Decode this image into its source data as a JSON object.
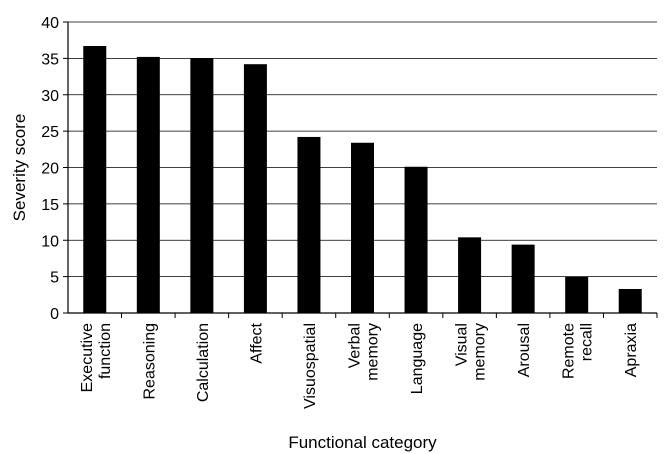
{
  "chart_data": {
    "type": "bar",
    "title": "",
    "xlabel": "Functional category",
    "ylabel": "Severity score",
    "ylim": [
      0,
      40
    ],
    "yticks": [
      0,
      5,
      10,
      15,
      20,
      25,
      30,
      35,
      40
    ],
    "grid": "horizontal",
    "legend": "none",
    "bar_color": "#000000",
    "categories": [
      [
        "Executive",
        "function"
      ],
      [
        "Reasoning"
      ],
      [
        "Calculation"
      ],
      [
        "Affect"
      ],
      [
        "Visuospatial"
      ],
      [
        "Verbal",
        "memory"
      ],
      [
        "Language"
      ],
      [
        "Visual",
        "memory"
      ],
      [
        "Arousal"
      ],
      [
        "Remote",
        "recall"
      ],
      [
        "Apraxia"
      ]
    ],
    "values": [
      36.7,
      35.2,
      35.0,
      34.2,
      24.2,
      23.4,
      20.1,
      10.4,
      9.4,
      5.0,
      3.3
    ]
  }
}
